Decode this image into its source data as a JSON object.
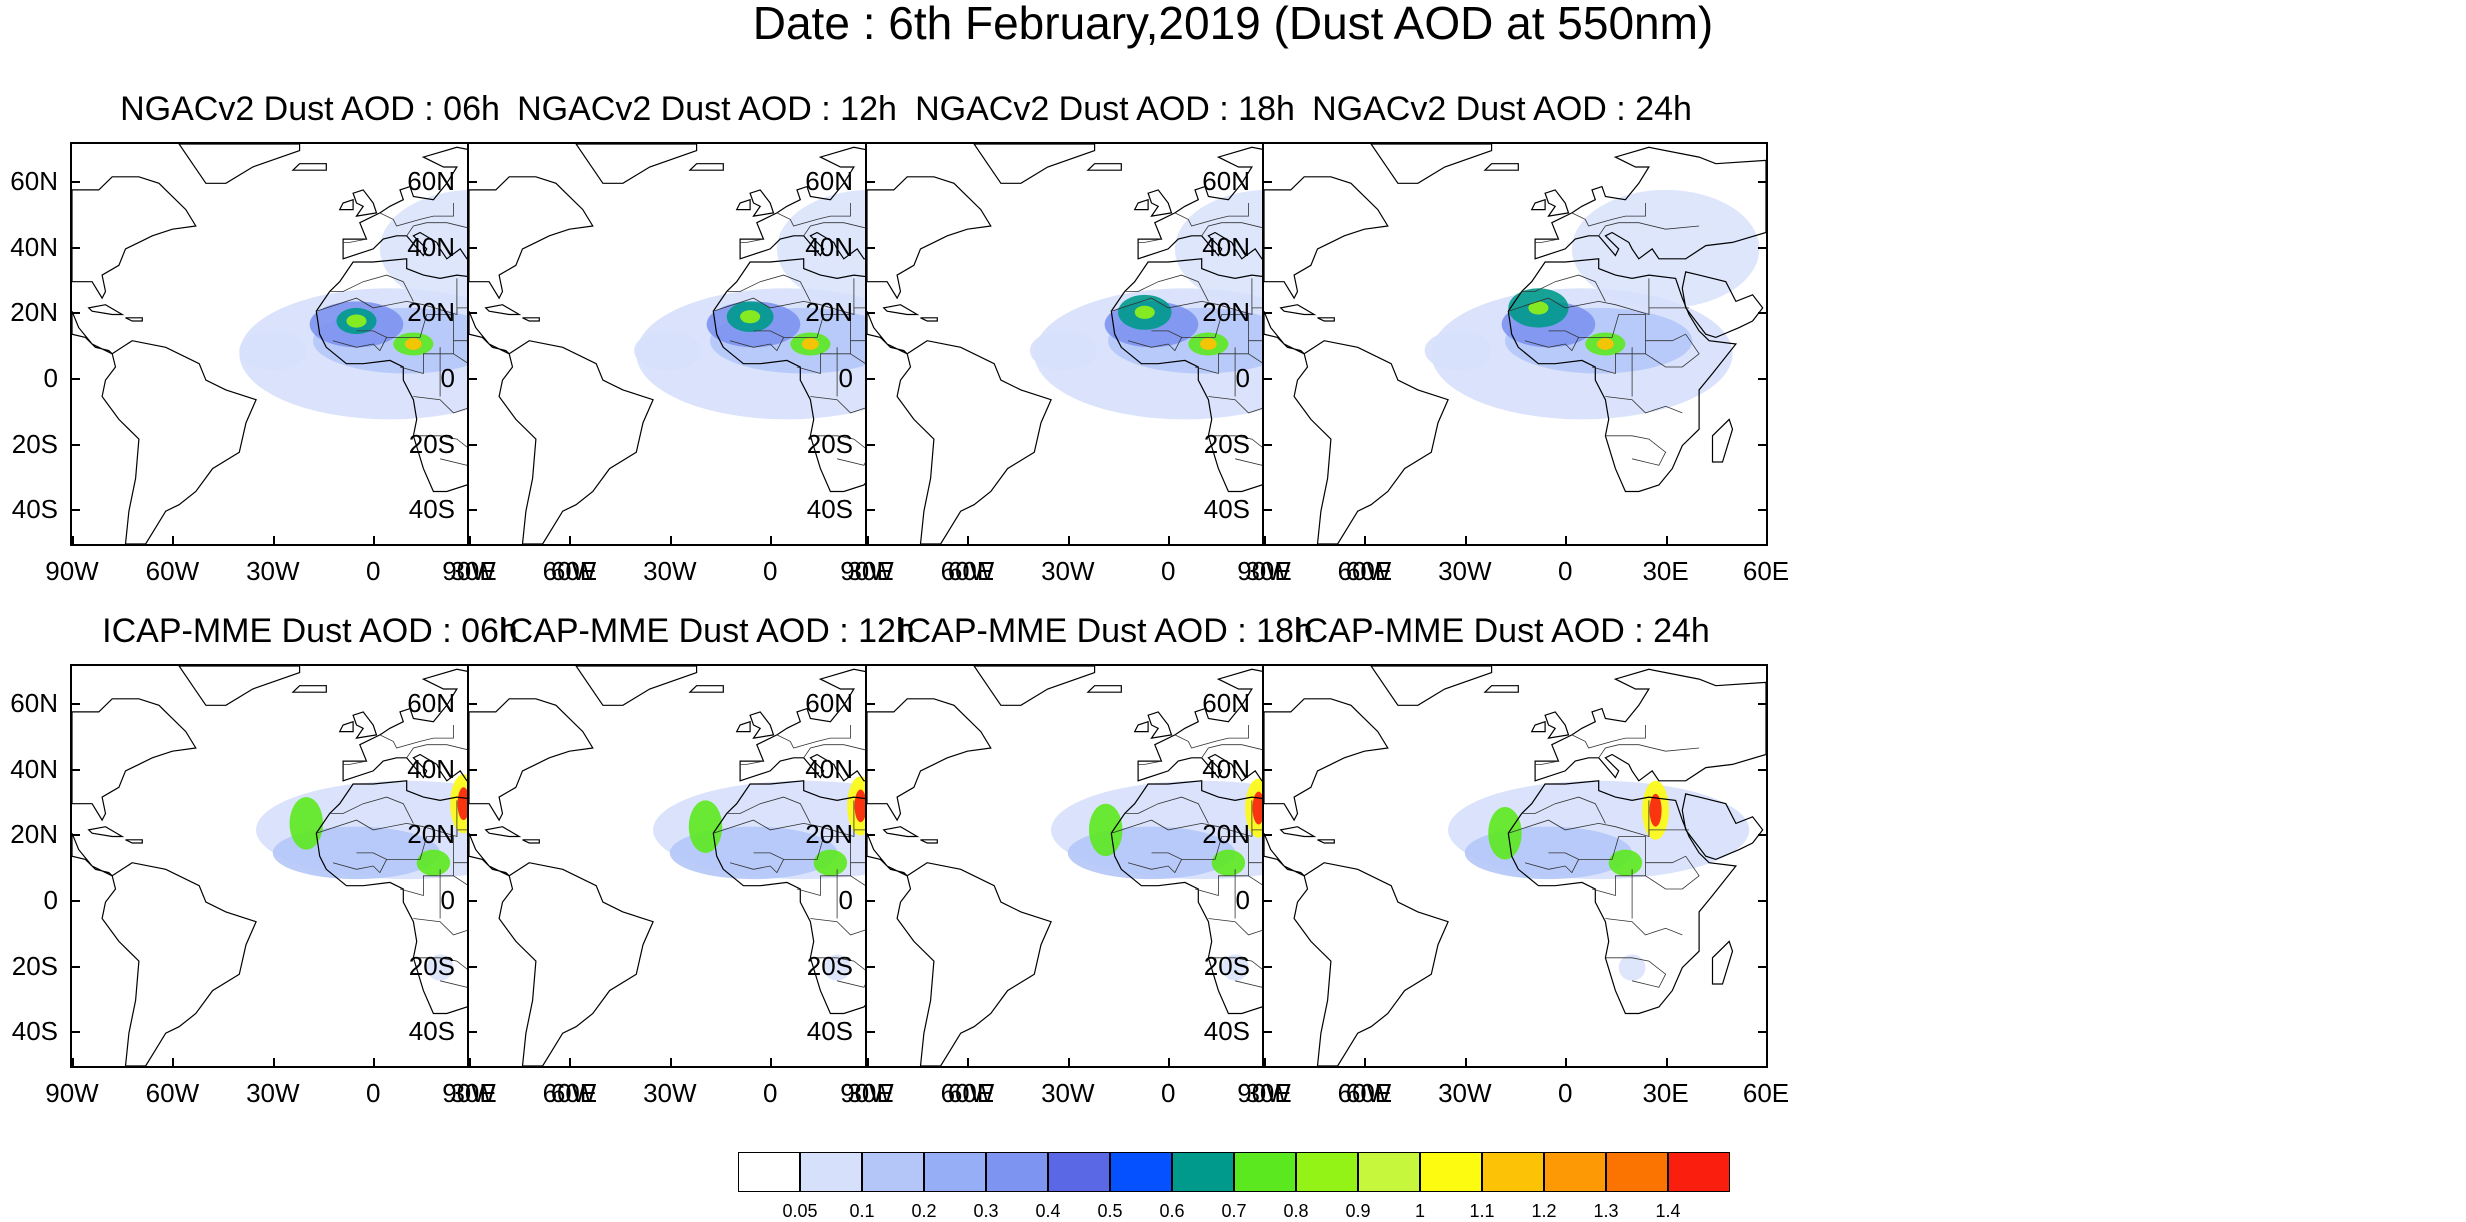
{
  "main_title": "Date : 6th February,2019 (Dust AOD at 550nm)",
  "lat_ticks": [
    "60N",
    "40N",
    "20N",
    "0",
    "20S",
    "40S"
  ],
  "lon_ticks": [
    "90W",
    "60W",
    "30W",
    "0",
    "30E",
    "60E"
  ],
  "map": {
    "lon_range": [
      -90,
      60
    ],
    "lat_range": [
      -50,
      72
    ],
    "projection": "cylindrical equidistant",
    "coastlines": "black outlines with country borders"
  },
  "panels": [
    {
      "title": "NGACv2 Dust AOD : 06h",
      "model": "NGACv2",
      "hour": "06h"
    },
    {
      "title": "NGACv2 Dust AOD : 12h",
      "model": "NGACv2",
      "hour": "12h"
    },
    {
      "title": "NGACv2 Dust AOD : 18h",
      "model": "NGACv2",
      "hour": "18h"
    },
    {
      "title": "NGACv2 Dust AOD : 24h",
      "model": "NGACv2",
      "hour": "24h"
    },
    {
      "title": "ICAP-MME Dust AOD : 06h",
      "model": "ICAP-MME",
      "hour": "06h"
    },
    {
      "title": "ICAP-MME Dust AOD : 12h",
      "model": "ICAP-MME",
      "hour": "12h"
    },
    {
      "title": "ICAP-MME Dust AOD : 18h",
      "model": "ICAP-MME",
      "hour": "18h"
    },
    {
      "title": "ICAP-MME Dust AOD : 24h",
      "model": "ICAP-MME",
      "hour": "24h"
    }
  ],
  "colorbar": {
    "labels": [
      "0.05",
      "0.1",
      "0.2",
      "0.3",
      "0.4",
      "0.5",
      "0.6",
      "0.7",
      "0.8",
      "0.9",
      "1",
      "1.1",
      "1.2",
      "1.3",
      "1.4"
    ],
    "colors": [
      "#ffffff",
      "#d6e0fb",
      "#b4c6f8",
      "#95aef6",
      "#7d94f0",
      "#5a68e6",
      "#0550ff",
      "#009a8c",
      "#5ce81e",
      "#93f316",
      "#c6f73c",
      "#fdfb10",
      "#fcc205",
      "#fc9905",
      "#fb7402",
      "#fa1e0f"
    ]
  }
}
